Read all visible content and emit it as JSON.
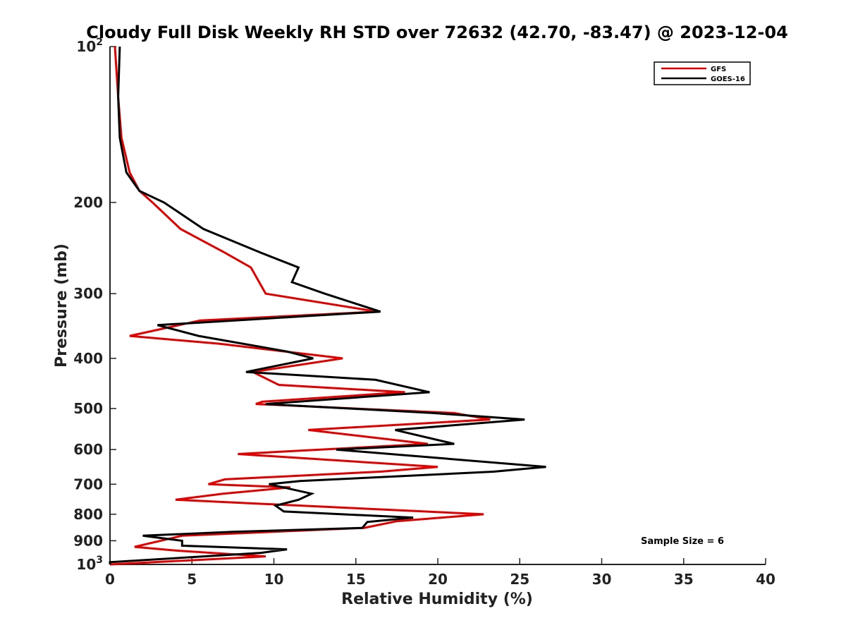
{
  "chart_data": {
    "type": "line",
    "title": "Cloudy Full Disk Weekly RH STD over 72632 (42.70, -83.47) @ 2023-12-04",
    "xlabel": "Relative Humidity (%)",
    "ylabel": "Pressure (mb)",
    "xlim": [
      0,
      40
    ],
    "ylim": [
      100,
      1000
    ],
    "y_scale": "log",
    "y_reversed": true,
    "x_ticks": [
      0,
      5,
      10,
      15,
      20,
      25,
      30,
      35,
      40
    ],
    "x_tick_labels": [
      "0",
      "5",
      "10",
      "15",
      "20",
      "25",
      "30",
      "35",
      "40"
    ],
    "y_ticks": [
      100,
      200,
      300,
      400,
      500,
      600,
      700,
      800,
      900,
      1000
    ],
    "y_tick_labels": [
      "10^2",
      "200",
      "300",
      "400",
      "500",
      "600",
      "700",
      "800",
      "900",
      "10^3"
    ],
    "grid": false,
    "legend_position": "top-right",
    "annotation": "Sample Size = 6",
    "series": [
      {
        "name": "GFS",
        "color": "#e00000",
        "points": [
          [
            0.3,
            100
          ],
          [
            0.5,
            125
          ],
          [
            0.7,
            150
          ],
          [
            1.2,
            175
          ],
          [
            1.8,
            190
          ],
          [
            2.6,
            200
          ],
          [
            4.3,
            225
          ],
          [
            7.0,
            250
          ],
          [
            8.6,
            267
          ],
          [
            9.5,
            300
          ],
          [
            16.3,
            325
          ],
          [
            5.5,
            338
          ],
          [
            1.2,
            362
          ],
          [
            6.7,
            375
          ],
          [
            14.2,
            400
          ],
          [
            8.7,
            425
          ],
          [
            10.3,
            450
          ],
          [
            18.0,
            465
          ],
          [
            9.3,
            485
          ],
          [
            8.9,
            490
          ],
          [
            21.0,
            510
          ],
          [
            23.2,
            525
          ],
          [
            12.1,
            550
          ],
          [
            19.4,
            585
          ],
          [
            7.8,
            612
          ],
          [
            20.0,
            648
          ],
          [
            16.5,
            662
          ],
          [
            7.0,
            685
          ],
          [
            6.0,
            700
          ],
          [
            11.0,
            710
          ],
          [
            6.9,
            730
          ],
          [
            4.0,
            750
          ],
          [
            22.8,
            800
          ],
          [
            17.5,
            825
          ],
          [
            15.5,
            850
          ],
          [
            4.4,
            880
          ],
          [
            1.5,
            925
          ],
          [
            4.0,
            940
          ],
          [
            9.5,
            965
          ],
          [
            0,
            1000
          ]
        ]
      },
      {
        "name": "GOES-16",
        "color": "#000000",
        "points": [
          [
            0.6,
            100
          ],
          [
            0.5,
            125
          ],
          [
            0.6,
            150
          ],
          [
            1.0,
            175
          ],
          [
            1.8,
            190
          ],
          [
            3.3,
            200
          ],
          [
            5.7,
            225
          ],
          [
            9.2,
            250
          ],
          [
            11.5,
            267
          ],
          [
            11.1,
            285
          ],
          [
            13.1,
            300
          ],
          [
            16.5,
            325
          ],
          [
            2.9,
            345
          ],
          [
            5.4,
            362
          ],
          [
            10.8,
            388
          ],
          [
            12.4,
            400
          ],
          [
            8.3,
            425
          ],
          [
            16.2,
            440
          ],
          [
            19.5,
            465
          ],
          [
            9.5,
            490
          ],
          [
            19.7,
            510
          ],
          [
            25.3,
            525
          ],
          [
            17.4,
            550
          ],
          [
            21.0,
            585
          ],
          [
            13.8,
            600
          ],
          [
            26.6,
            648
          ],
          [
            23.4,
            662
          ],
          [
            11.6,
            690
          ],
          [
            9.7,
            700
          ],
          [
            12.3,
            730
          ],
          [
            11.5,
            750
          ],
          [
            10.1,
            770
          ],
          [
            10.6,
            790
          ],
          [
            18.5,
            812
          ],
          [
            15.7,
            828
          ],
          [
            15.4,
            850
          ],
          [
            7.5,
            865
          ],
          [
            2.0,
            880
          ],
          [
            4.4,
            900
          ],
          [
            4.4,
            920
          ],
          [
            10.8,
            935
          ],
          [
            9.2,
            950
          ],
          [
            0,
            990
          ],
          [
            0,
            1000
          ]
        ]
      }
    ]
  }
}
